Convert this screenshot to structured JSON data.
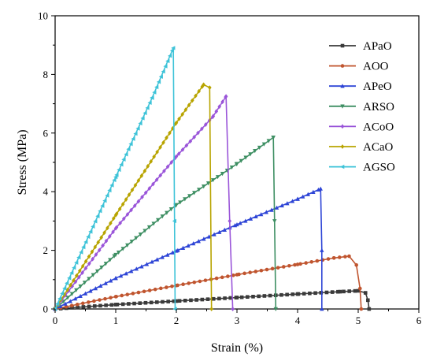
{
  "chart_data": {
    "type": "line",
    "title": "",
    "xlabel": "Strain (%)",
    "ylabel": "Stress (MPa)",
    "xlim": [
      0,
      6
    ],
    "ylim": [
      0,
      10
    ],
    "xticks": [
      "0",
      "1",
      "2",
      "3",
      "4",
      "5",
      "6"
    ],
    "yticks": [
      "0",
      "2",
      "4",
      "6",
      "8",
      "10"
    ],
    "grid": false,
    "legend_position": "top-right",
    "series": [
      {
        "name": "APaO",
        "color": "#3a3a3a",
        "marker": "square",
        "x": [
          0,
          1,
          2,
          3,
          4,
          4.7,
          5.0,
          5.12,
          5.16,
          5.18
        ],
        "y": [
          0,
          0.15,
          0.27,
          0.39,
          0.51,
          0.59,
          0.62,
          0.55,
          0.3,
          0
        ]
      },
      {
        "name": "AOO",
        "color": "#c0552f",
        "marker": "circle",
        "x": [
          0,
          1,
          2,
          3,
          4,
          4.6,
          4.85,
          4.97,
          5.03,
          5.05
        ],
        "y": [
          0,
          0.42,
          0.8,
          1.17,
          1.52,
          1.74,
          1.8,
          1.5,
          0.7,
          0
        ]
      },
      {
        "name": "APeO",
        "color": "#2e45d6",
        "marker": "triangle-up",
        "x": [
          0,
          1,
          2,
          3,
          4,
          4.38,
          4.4,
          4.4
        ],
        "y": [
          0,
          1.05,
          1.98,
          2.88,
          3.75,
          4.1,
          2.0,
          0
        ]
      },
      {
        "name": "ARSO",
        "color": "#3e8f63",
        "marker": "triangle-down",
        "x": [
          0,
          1,
          2,
          3,
          3.6,
          3.62,
          3.64
        ],
        "y": [
          0,
          1.85,
          3.55,
          4.95,
          5.85,
          3.0,
          0
        ]
      },
      {
        "name": "ACoO",
        "color": "#9a55d9",
        "marker": "diamond",
        "x": [
          0,
          1,
          2,
          2.6,
          2.82,
          2.88,
          2.93
        ],
        "y": [
          0,
          2.75,
          5.2,
          6.55,
          7.25,
          3.0,
          0
        ]
      },
      {
        "name": "ACaO",
        "color": "#b8a400",
        "marker": "diamond",
        "x": [
          0,
          1,
          2,
          2.45,
          2.55,
          2.58
        ],
        "y": [
          0,
          3.2,
          6.35,
          7.65,
          7.55,
          0
        ]
      },
      {
        "name": "AGSO",
        "color": "#3ec3d8",
        "marker": "triangle-left",
        "x": [
          0,
          1,
          1.6,
          1.95,
          1.97,
          1.98
        ],
        "y": [
          0,
          4.5,
          7.2,
          8.9,
          3.0,
          0
        ]
      }
    ]
  }
}
